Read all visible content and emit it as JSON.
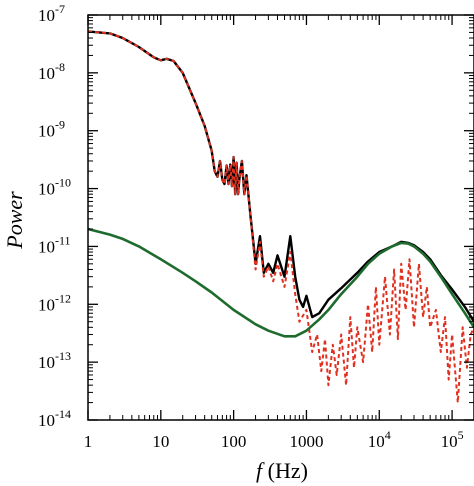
{
  "chart_data": {
    "type": "line",
    "xlabel": {
      "symbol": "f",
      "unit": " (Hz)"
    },
    "ylabel": "Power",
    "xscale": "log",
    "yscale": "log",
    "xlim": [
      1,
      200000
    ],
    "ylim": [
      1e-14,
      1e-07
    ],
    "x_ticks": [
      {
        "value": 1,
        "base": "1",
        "exp": ""
      },
      {
        "value": 10,
        "base": "10",
        "exp": ""
      },
      {
        "value": 100,
        "base": "100",
        "exp": ""
      },
      {
        "value": 1000,
        "base": "1000",
        "exp": ""
      },
      {
        "value": 10000,
        "base": "10",
        "exp": "4"
      },
      {
        "value": 100000,
        "base": "10",
        "exp": "5"
      }
    ],
    "y_ticks": [
      {
        "value": 1e-07,
        "base": "10",
        "exp": "-7"
      },
      {
        "value": 1e-08,
        "base": "10",
        "exp": "-8"
      },
      {
        "value": 1e-09,
        "base": "10",
        "exp": "-9"
      },
      {
        "value": 1e-10,
        "base": "10",
        "exp": "-10"
      },
      {
        "value": 1e-11,
        "base": "10",
        "exp": "-11"
      },
      {
        "value": 1e-12,
        "base": "10",
        "exp": "-12"
      },
      {
        "value": 1e-13,
        "base": "10",
        "exp": "-13"
      },
      {
        "value": 1e-14,
        "base": "10",
        "exp": "-14"
      }
    ],
    "grid": false,
    "legend": "none",
    "series": [
      {
        "color": "#000000",
        "style": "solid",
        "x": [
          1,
          2,
          3,
          5,
          8,
          10,
          12,
          15,
          20,
          30,
          40,
          50,
          55,
          60,
          65,
          70,
          75,
          80,
          85,
          90,
          95,
          100,
          105,
          110,
          115,
          120,
          130,
          140,
          150,
          170,
          200,
          230,
          260,
          300,
          350,
          400,
          500,
          600,
          700,
          800,
          900,
          1000,
          1200,
          1500,
          2000,
          3000,
          5000,
          7000,
          10000,
          15000,
          20000,
          25000,
          30000,
          40000,
          50000,
          70000,
          100000,
          150000,
          200000
        ],
        "y": [
          5.2e-08,
          4.8e-08,
          4e-08,
          2.8e-08,
          1.85e-08,
          1.65e-08,
          1.75e-08,
          1.6e-08,
          1e-08,
          3e-09,
          1.2e-09,
          4.5e-10,
          2e-10,
          1.6e-10,
          3e-10,
          1.4e-10,
          1.2e-10,
          2.5e-10,
          1.2e-10,
          2.6e-10,
          1.1e-10,
          3.5e-10,
          8e-11,
          2.8e-10,
          8e-11,
          1.5e-10,
          3e-10,
          8e-11,
          1.7e-10,
          3.5e-11,
          5e-12,
          1.5e-11,
          3.5e-12,
          5e-12,
          3.5e-12,
          7e-12,
          3e-12,
          1.5e-11,
          3e-12,
          1.2e-12,
          9e-13,
          1.4e-12,
          6e-13,
          7e-13,
          1.2e-12,
          1.9e-12,
          3.5e-12,
          5.5e-12,
          8e-12,
          1e-11,
          1.2e-11,
          1.15e-11,
          1.05e-11,
          8e-12,
          6e-12,
          3.2e-12,
          1.8e-12,
          9e-13,
          5e-13
        ]
      },
      {
        "color": "#e03020",
        "style": "dashed",
        "x": [
          1,
          2,
          3,
          5,
          8,
          10,
          12,
          15,
          20,
          30,
          40,
          50,
          55,
          60,
          65,
          70,
          75,
          80,
          85,
          90,
          95,
          100,
          105,
          110,
          115,
          120,
          130,
          140,
          150,
          170,
          200,
          230,
          260,
          300,
          350,
          400,
          500,
          600,
          700,
          800,
          1000,
          1200,
          1400,
          1600,
          1800,
          2000,
          2300,
          2600,
          3000,
          3500,
          4000,
          4500,
          5000,
          6000,
          7000,
          8000,
          9000,
          10000,
          12000,
          14000,
          16000,
          18000,
          20000,
          23000,
          26000,
          30000,
          35000,
          40000,
          45000,
          50000,
          60000,
          70000,
          80000,
          90000,
          100000,
          120000,
          140000,
          160000,
          180000,
          200000
        ],
        "y": [
          5.2e-08,
          4.8e-08,
          4e-08,
          2.8e-08,
          1.85e-08,
          1.65e-08,
          1.75e-08,
          1.6e-08,
          1e-08,
          3e-09,
          1.2e-09,
          4.5e-10,
          2e-10,
          1.6e-10,
          3e-10,
          1.4e-10,
          1.2e-10,
          2.5e-10,
          1.2e-10,
          2.6e-10,
          1.1e-10,
          3.5e-10,
          8e-11,
          2.8e-10,
          8e-11,
          1.5e-10,
          3e-10,
          8e-11,
          1.7e-10,
          3.5e-11,
          4e-12,
          1.2e-11,
          3e-12,
          4.5e-12,
          2.5e-12,
          5e-12,
          2e-12,
          8e-12,
          1.5e-12,
          5e-13,
          8e-13,
          1.5e-13,
          3e-13,
          7e-14,
          2.5e-13,
          4e-14,
          2e-13,
          6e-14,
          3e-13,
          4e-14,
          6e-13,
          8e-14,
          4e-13,
          1e-13,
          1e-12,
          1.5e-13,
          2e-12,
          2e-13,
          3e-12,
          3e-13,
          4e-12,
          2.5e-13,
          5e-12,
          8e-13,
          6e-12,
          4e-13,
          5e-12,
          6e-13,
          2e-12,
          4e-13,
          8e-13,
          1.5e-13,
          6e-13,
          5e-14,
          3e-13,
          2e-14,
          4e-13,
          8e-14,
          3e-13,
          4e-13
        ]
      },
      {
        "color": "#1e6b2e",
        "style": "solid",
        "x": [
          1,
          2,
          3,
          5,
          10,
          20,
          30,
          50,
          100,
          200,
          300,
          500,
          700,
          1000,
          1500,
          2000,
          3000,
          5000,
          7000,
          10000,
          15000,
          20000,
          25000,
          30000,
          40000,
          50000,
          70000,
          100000,
          150000,
          200000
        ],
        "y": [
          2e-11,
          1.6e-11,
          1.35e-11,
          1e-11,
          6e-12,
          3.5e-12,
          2.5e-12,
          1.6e-12,
          8e-13,
          4.5e-13,
          3.5e-13,
          2.8e-13,
          2.8e-13,
          3.5e-13,
          5.5e-13,
          8e-13,
          1.5e-12,
          3e-12,
          5e-12,
          7.5e-12,
          1e-11,
          1.15e-11,
          1.12e-11,
          1e-11,
          7.5e-12,
          5.5e-12,
          3e-12,
          1.5e-12,
          7e-13,
          4e-13
        ]
      }
    ]
  }
}
